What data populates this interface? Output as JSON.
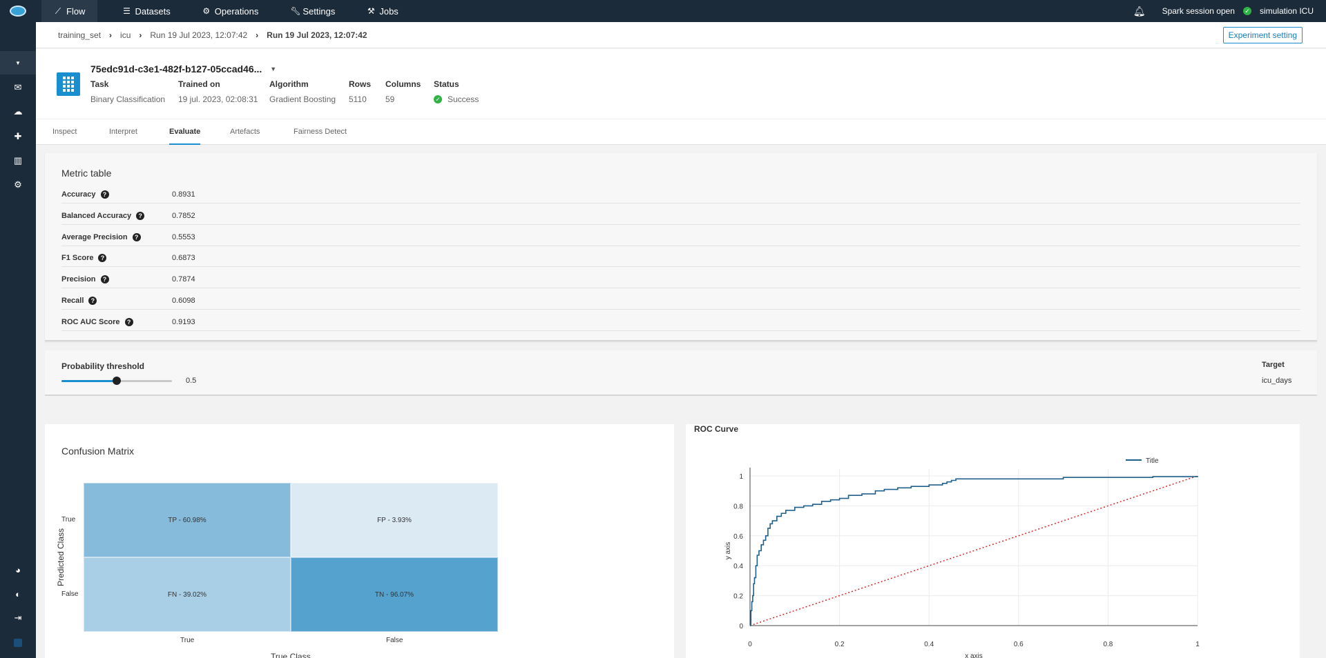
{
  "topbar": {
    "nav": [
      {
        "label": "Flow",
        "icon": "chart-line-icon"
      },
      {
        "label": "Datasets",
        "icon": "list-icon"
      },
      {
        "label": "Operations",
        "icon": "cog-icon"
      },
      {
        "label": "Settings",
        "icon": "wrench-icon"
      },
      {
        "label": "Jobs",
        "icon": "jobs-icon"
      }
    ],
    "spark_status": "Spark session open",
    "project": "simulation ICU"
  },
  "breadcrumb": {
    "items": [
      "training_set",
      "icu",
      "Run 19 Jul 2023, 12:07:42",
      "Run 19 Jul 2023, 12:07:42"
    ],
    "button": "Experiment setting"
  },
  "model": {
    "id": "75edc91d-c3e1-482f-b127-05ccad46...",
    "meta": [
      {
        "label": "Task",
        "value": "Binary Classification"
      },
      {
        "label": "Trained on",
        "value": "19 jul. 2023, 02:08:31"
      },
      {
        "label": "Algorithm",
        "value": "Gradient Boosting"
      },
      {
        "label": "Rows",
        "value": "5110"
      },
      {
        "label": "Columns",
        "value": "59"
      },
      {
        "label": "Status",
        "value": "Success"
      }
    ]
  },
  "tabs": [
    "Inspect",
    "Interpret",
    "Evaluate",
    "Artefacts",
    "Fairness Detect"
  ],
  "active_tab": "Evaluate",
  "metric_table": {
    "title": "Metric table",
    "rows": [
      {
        "name": "Accuracy",
        "value": "0.8931"
      },
      {
        "name": "Balanced Accuracy",
        "value": "0.7852"
      },
      {
        "name": "Average Precision",
        "value": "0.5553"
      },
      {
        "name": "F1 Score",
        "value": "0.6873"
      },
      {
        "name": "Precision",
        "value": "0.7874"
      },
      {
        "name": "Recall",
        "value": "0.6098"
      },
      {
        "name": "ROC AUC Score",
        "value": "0.9193"
      }
    ]
  },
  "threshold": {
    "label": "Probability threshold",
    "value": 0.5,
    "value_text": "0.5",
    "target_label": "Target",
    "target_value": "icu_days"
  },
  "colors": {
    "accent": "#1a8fcf",
    "topbar": "#1c2b3a",
    "roc_line": "#1f5f8b",
    "roc_diag": "#d62728"
  },
  "confusion_matrix": {
    "title": "Confusion Matrix",
    "x_title": "True Class",
    "y_title": "Predicted Class",
    "x_labels": [
      "True",
      "False"
    ],
    "y_labels": [
      "True",
      "False"
    ],
    "cells": [
      {
        "label": "TP - 60.98%",
        "color": "#86bbdc"
      },
      {
        "label": "FP - 3.93%",
        "color": "#dceaf4"
      },
      {
        "label": "FN - 39.02%",
        "color": "#a9cfe6"
      },
      {
        "label": "TN - 96.07%",
        "color": "#55a2cf"
      }
    ]
  },
  "chart_data": {
    "type": "line",
    "title": "ROC Curve",
    "xlabel": "x axis",
    "ylabel": "y axis",
    "xlim": [
      0,
      1
    ],
    "ylim": [
      0,
      1
    ],
    "x_ticks": [
      "0",
      "0.2",
      "0.4",
      "0.6",
      "0.8",
      "1"
    ],
    "y_ticks": [
      "0",
      "0.2",
      "0.4",
      "0.6",
      "0.8",
      "1"
    ],
    "grid": true,
    "legend": "top-right",
    "series": [
      {
        "name": "Title",
        "x": [
          0,
          0.002,
          0.004,
          0.006,
          0.008,
          0.01,
          0.013,
          0.016,
          0.02,
          0.025,
          0.03,
          0.035,
          0.04,
          0.045,
          0.05,
          0.06,
          0.07,
          0.08,
          0.1,
          0.12,
          0.14,
          0.16,
          0.18,
          0.2,
          0.22,
          0.25,
          0.28,
          0.3,
          0.33,
          0.36,
          0.4,
          0.43,
          0.44,
          0.45,
          0.46,
          0.5,
          0.55,
          0.6,
          0.65,
          0.7,
          0.8,
          0.9,
          1
        ],
        "y": [
          0,
          0.1,
          0.16,
          0.2,
          0.28,
          0.32,
          0.4,
          0.47,
          0.5,
          0.54,
          0.57,
          0.6,
          0.65,
          0.68,
          0.7,
          0.73,
          0.75,
          0.77,
          0.79,
          0.8,
          0.81,
          0.83,
          0.84,
          0.85,
          0.87,
          0.88,
          0.9,
          0.91,
          0.92,
          0.93,
          0.94,
          0.95,
          0.96,
          0.97,
          0.98,
          0.98,
          0.98,
          0.98,
          0.98,
          0.99,
          0.99,
          0.995,
          1
        ]
      },
      {
        "name": "",
        "x": [
          0,
          1
        ],
        "y": [
          0,
          1
        ]
      }
    ]
  }
}
